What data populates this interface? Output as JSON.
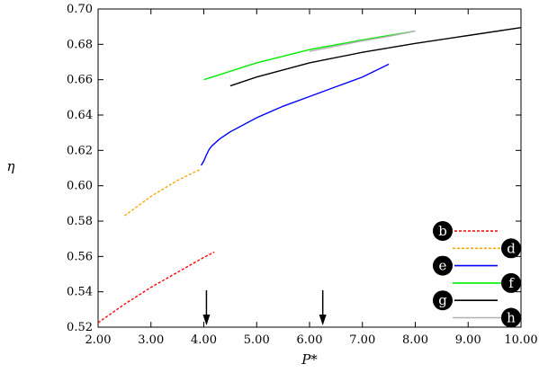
{
  "chart_data": {
    "type": "line",
    "xlabel": "P*",
    "ylabel": "η",
    "xlim": [
      2.0,
      10.0
    ],
    "ylim": [
      0.52,
      0.7
    ],
    "x_ticks": [
      "2.00",
      "3.00",
      "4.00",
      "5.00",
      "6.00",
      "7.00",
      "8.00",
      "9.00",
      "10.00"
    ],
    "y_ticks": [
      "0.52",
      "0.54",
      "0.56",
      "0.58",
      "0.60",
      "0.62",
      "0.64",
      "0.66",
      "0.68",
      "0.70"
    ],
    "grid": false,
    "legend_position": "bottom-right",
    "arrows_at_x": [
      4.05,
      6.25
    ],
    "series": [
      {
        "name": "b",
        "color": "#ff0000",
        "dash": "dashed",
        "x": [
          2.0,
          2.5,
          3.0,
          3.5,
          4.0,
          4.2
        ],
        "y": [
          0.5225,
          0.533,
          0.5425,
          0.551,
          0.5595,
          0.5625
        ]
      },
      {
        "name": "d",
        "color": "#ffa500",
        "dash": "dashed",
        "x": [
          2.5,
          3.0,
          3.5,
          3.95
        ],
        "y": [
          0.583,
          0.594,
          0.603,
          0.6095
        ]
      },
      {
        "name": "e",
        "color": "#0000ff",
        "dash": "solid",
        "x": [
          3.95,
          4.0,
          4.05,
          4.1,
          4.15,
          4.3,
          4.5,
          5.0,
          5.5,
          6.0,
          6.5,
          7.0,
          7.5
        ],
        "y": [
          0.6115,
          0.614,
          0.6175,
          0.6205,
          0.6225,
          0.6265,
          0.6305,
          0.6385,
          0.645,
          0.6505,
          0.656,
          0.6615,
          0.6688
        ]
      },
      {
        "name": "f",
        "color": "#00ee00",
        "dash": "solid",
        "x": [
          4.0,
          5.0,
          6.0,
          7.0,
          8.0
        ],
        "y": [
          0.66,
          0.6695,
          0.677,
          0.6825,
          0.6875
        ]
      },
      {
        "name": "g",
        "color": "#000000",
        "dash": "solid",
        "x": [
          4.5,
          5.0,
          6.0,
          7.0,
          8.0,
          9.0,
          10.0
        ],
        "y": [
          0.6565,
          0.6615,
          0.6695,
          0.6755,
          0.6805,
          0.685,
          0.6895
        ]
      },
      {
        "name": "h",
        "color": "#b0b0b0",
        "dash": "solid",
        "x": [
          6.0,
          6.5,
          7.0,
          7.5,
          8.0
        ],
        "y": [
          0.676,
          0.679,
          0.682,
          0.6845,
          0.6875
        ]
      }
    ]
  }
}
